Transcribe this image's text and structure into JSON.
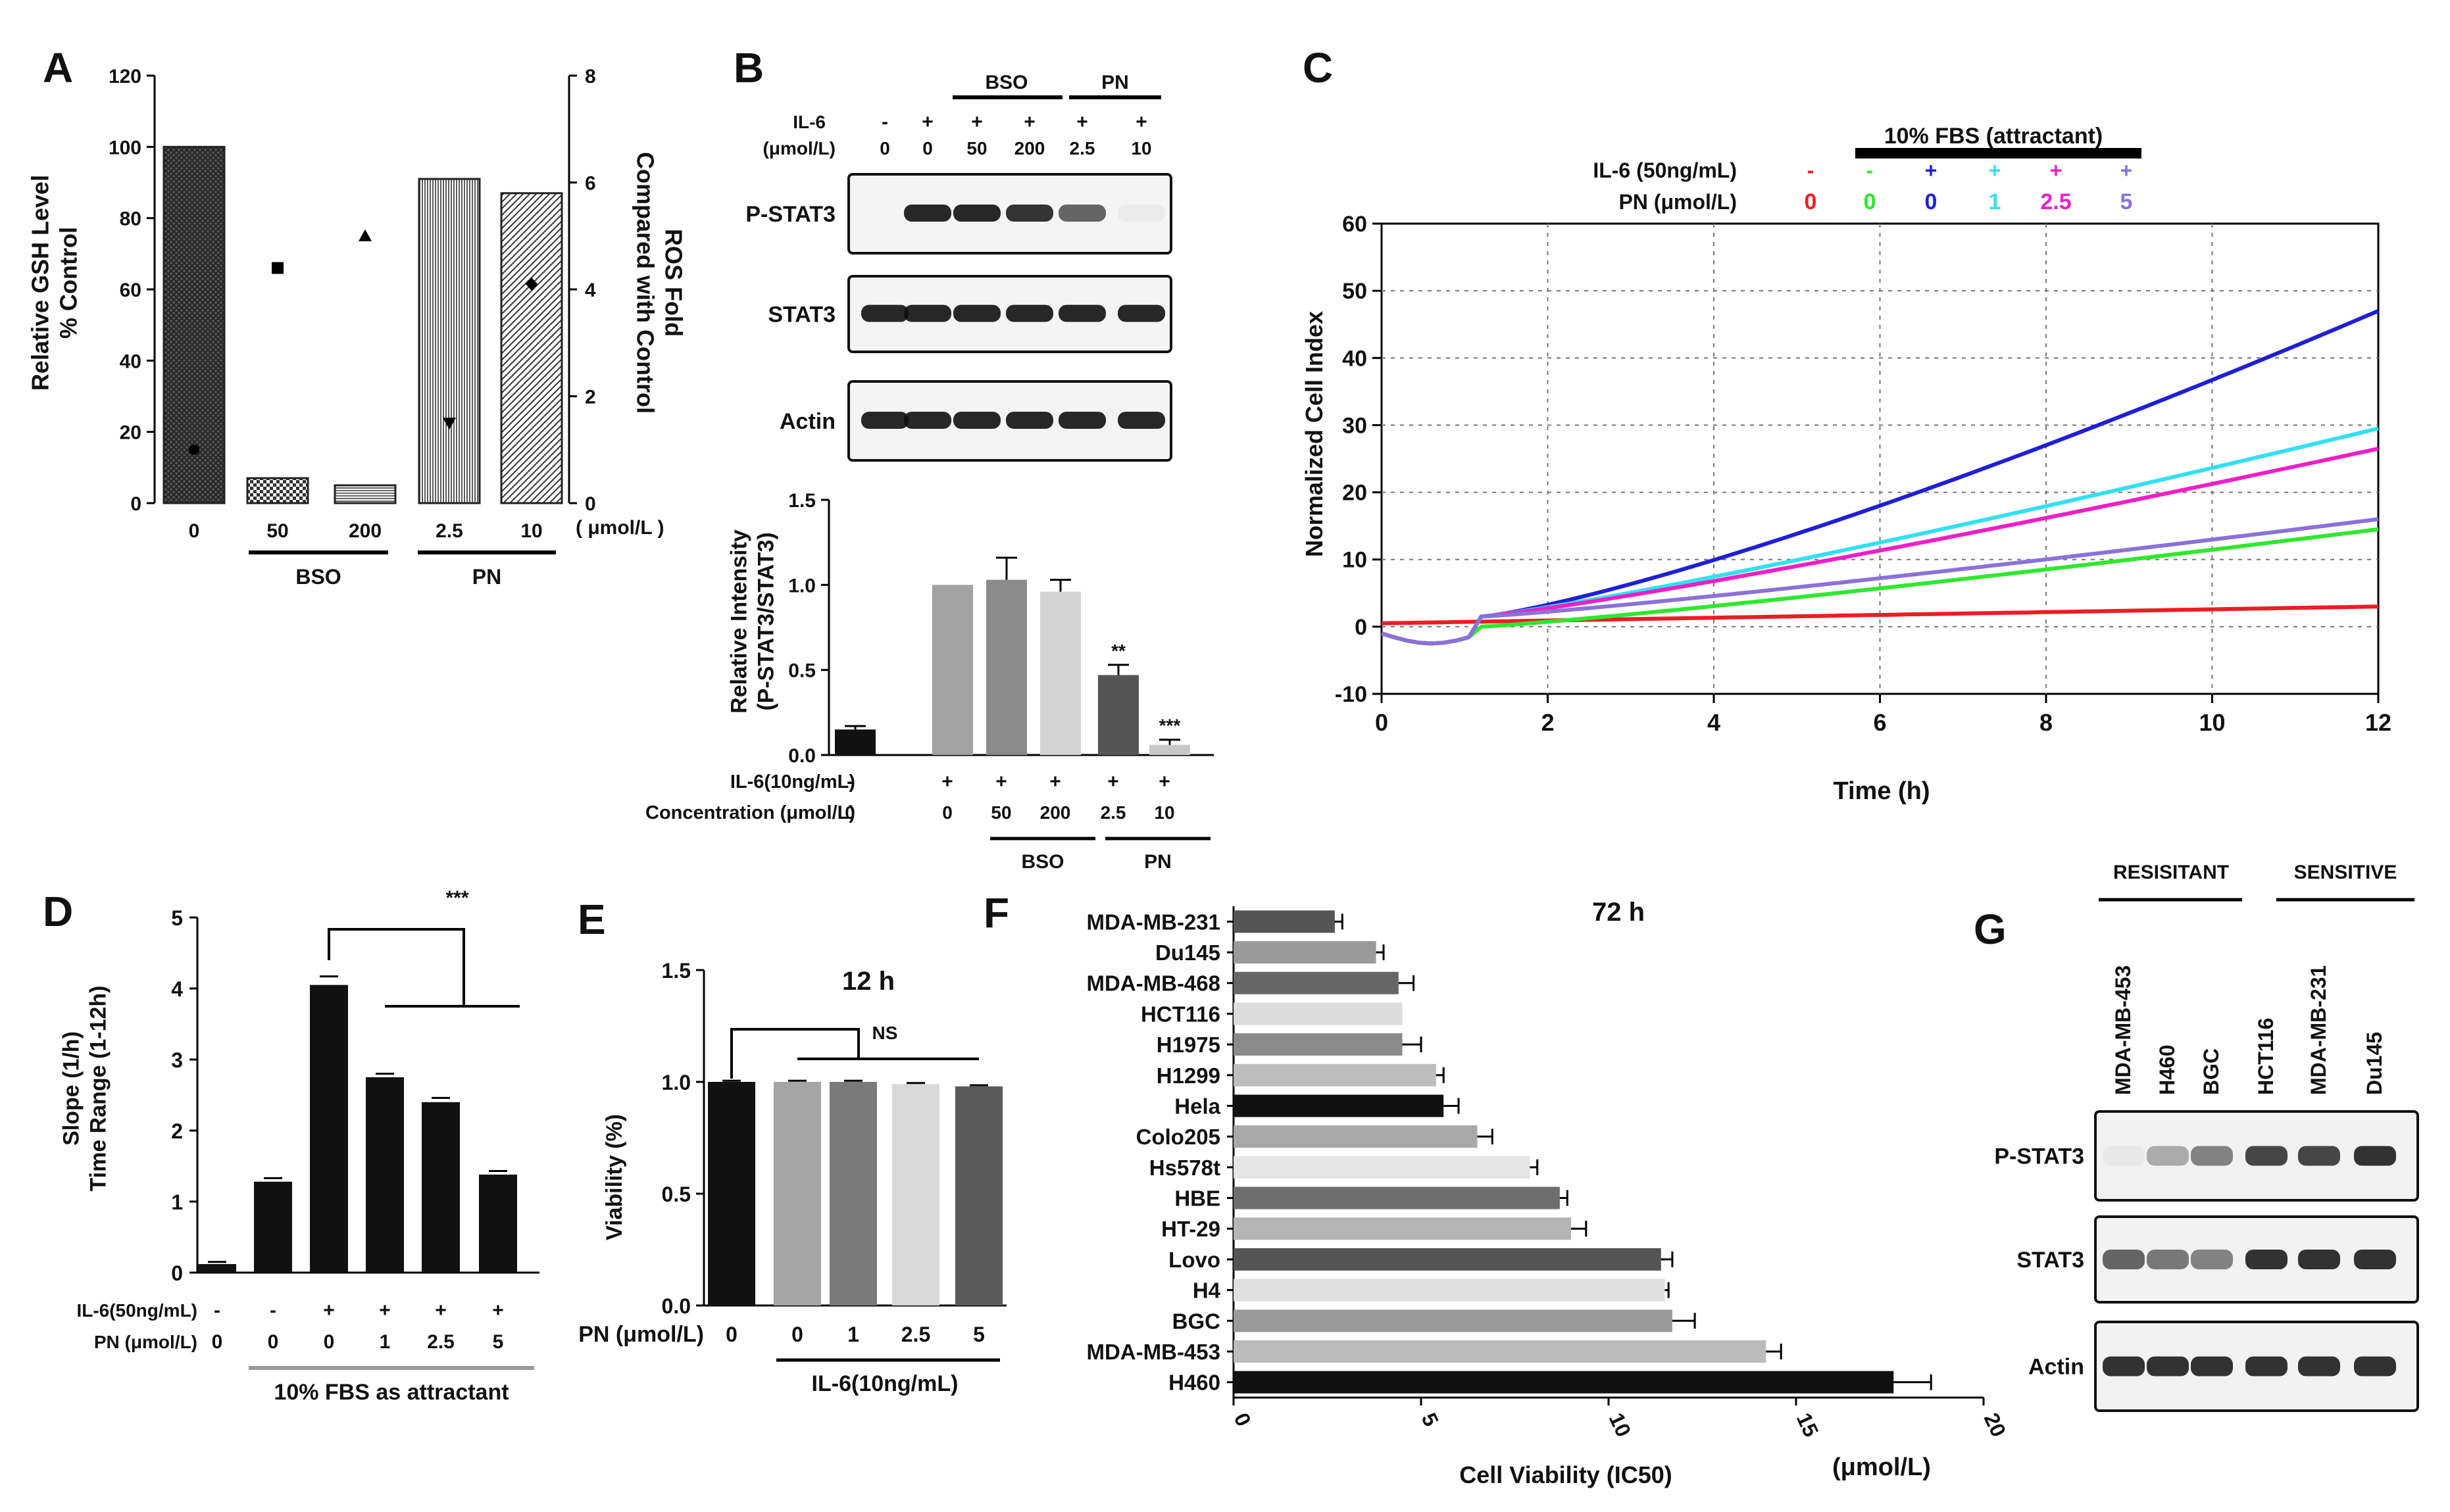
{
  "chart_data": [
    {
      "panel": "A",
      "type": "bar",
      "categories": [
        "0",
        "50",
        "200",
        "2.5",
        "10"
      ],
      "values": [
        100,
        7,
        5,
        91,
        87
      ],
      "ros_markers": [
        1,
        4.4,
        5,
        1.5,
        4.1
      ],
      "ylabel": "Relative GSH Level\n% Control",
      "ylabel2": "ROS Fold\nCompared with Control",
      "ylim": [
        0,
        120
      ],
      "yticks": [
        0,
        20,
        40,
        60,
        80,
        100,
        120
      ],
      "y2lim": [
        0,
        8
      ],
      "y2ticks": [
        0,
        2,
        4,
        6,
        8
      ],
      "unit": "( μmol/L )",
      "groups": [
        "BSO",
        "PN"
      ]
    },
    {
      "panel": "B",
      "type": "bar",
      "blot_top": {
        "group_labels": [
          "BSO",
          "PN"
        ],
        "row_label": "IL-6",
        "unit_label": "(μmol/L)",
        "signs": [
          "-",
          "+",
          "+",
          "+",
          "+",
          "+"
        ],
        "conc": [
          "0",
          "0",
          "50",
          "200",
          "2.5",
          "10"
        ],
        "bands": [
          "P-STAT3",
          "STAT3",
          "Actin"
        ]
      },
      "categories": [
        "0",
        "0",
        "50",
        "200",
        "2.5",
        "10"
      ],
      "values": [
        0.15,
        1.0,
        1.03,
        0.96,
        0.47,
        0.06
      ],
      "errors": [
        0.02,
        0,
        0.13,
        0.07,
        0.06,
        0.03
      ],
      "sig": [
        "",
        "",
        "",
        "",
        "**",
        "***"
      ],
      "ylabel": "Relative Intensity\n(P-STAT3/STAT3)",
      "ylim": [
        0,
        1.5
      ],
      "yticks": [
        "0.0",
        "0.5",
        "1.0",
        "1.5"
      ],
      "row1_label": "IL-6(10ng/mL)",
      "row1": [
        "-",
        "+",
        "+",
        "+",
        "+",
        "+"
      ],
      "row2_label": "Concentration (μmol/L)",
      "row2": [
        "0",
        "0",
        "50",
        "200",
        "2.5",
        "10"
      ],
      "groups": [
        "BSO",
        "PN"
      ]
    },
    {
      "panel": "C",
      "type": "line",
      "header": "10% FBS (attractant)",
      "row1_label": "IL-6 (50ng/mL)",
      "row2_label": "PN (μmol/L)",
      "signs": [
        "-",
        "-",
        "+",
        "+",
        "+",
        "+"
      ],
      "conc": [
        "0",
        "0",
        "0",
        "1",
        "2.5",
        "5"
      ],
      "colors": [
        "#ee1c25",
        "#2ee82e",
        "#1f1fd6",
        "#33e0f0",
        "#ee1fc8",
        "#8a72d8"
      ],
      "series": [
        {
          "name": "IL-6 -, PN 0, no FBS",
          "end": 3
        },
        {
          "name": "IL-6 -, PN 0",
          "end": 14.5
        },
        {
          "name": "IL-6 +, PN 0",
          "end": 47
        },
        {
          "name": "IL-6 +, PN 1",
          "end": 29.5
        },
        {
          "name": "IL-6 +, PN 2.5",
          "end": 26.5
        },
        {
          "name": "IL-6 +, PN 5",
          "end": 16
        }
      ],
      "xlabel": "Time (h)",
      "ylabel": "Normalized Cell Index",
      "xlim": [
        0,
        12
      ],
      "xticks": [
        "0",
        "2",
        "4",
        "6",
        "8",
        "10",
        "12"
      ],
      "ylim": [
        -10,
        60
      ],
      "yticks": [
        "-10",
        "0",
        "10",
        "20",
        "30",
        "40",
        "50",
        "60"
      ]
    },
    {
      "panel": "D",
      "type": "bar",
      "categories": [
        "0",
        "0",
        "0",
        "1",
        "2.5",
        "5"
      ],
      "values": [
        0.12,
        1.28,
        4.05,
        2.75,
        2.4,
        1.38
      ],
      "errors": [
        0.03,
        0.05,
        0.12,
        0.05,
        0.06,
        0.05
      ],
      "sig": "***",
      "ylabel": "Slope (1/h)\nTime Range (1-12h)",
      "ylim": [
        0,
        5
      ],
      "yticks": [
        "0",
        "1",
        "2",
        "3",
        "4",
        "5"
      ],
      "row1_label": "IL-6(50ng/mL)",
      "row1": [
        "-",
        "-",
        "+",
        "+",
        "+",
        "+"
      ],
      "row2_label": "PN (μmol/L)",
      "row2": [
        "0",
        "0",
        "0",
        "1",
        "2.5",
        "5"
      ],
      "footer": "10% FBS as attractant"
    },
    {
      "panel": "E",
      "type": "bar",
      "title": "12 h",
      "categories": [
        "0",
        "0",
        "1",
        "2.5",
        "5"
      ],
      "values": [
        1.0,
        1.0,
        1.0,
        0.99,
        0.98
      ],
      "errors": [
        0.005,
        0.005,
        0.005,
        0.005,
        0.005
      ],
      "sig": "NS",
      "ylabel": "Viability (%)",
      "ylim": [
        0,
        1.5
      ],
      "yticks": [
        "0.0",
        "0.5",
        "1.0",
        "1.5"
      ],
      "row_label": "PN (μmol/L)",
      "footer": "IL-6(10ng/mL)"
    },
    {
      "panel": "F",
      "type": "bar",
      "orientation": "horizontal",
      "title": "72 h",
      "categories": [
        "MDA-MB-231",
        "Du145",
        "MDA-MB-468",
        "HCT116",
        "H1975",
        "H1299",
        "Hela",
        "Colo205",
        "Hs578t",
        "HBE",
        "HT-29",
        "Lovo",
        "H4",
        "BGC",
        "MDA-MB-453",
        "H460"
      ],
      "values": [
        2.7,
        3.8,
        4.4,
        4.5,
        4.5,
        5.4,
        5.6,
        6.5,
        7.9,
        8.7,
        9.0,
        11.4,
        11.5,
        11.7,
        14.2,
        17.6
      ],
      "errors": [
        0.2,
        0.2,
        0.4,
        0,
        0.5,
        0.2,
        0.4,
        0.4,
        0.2,
        0.2,
        0.4,
        0.3,
        0.1,
        0.6,
        0.4,
        1.0
      ],
      "xlabel": "Cell Viability  (IC50)",
      "unit": "(μmol/L)",
      "xlim": [
        0,
        20
      ],
      "xticks": [
        "0",
        "5",
        "10",
        "15",
        "20"
      ]
    },
    {
      "panel": "G",
      "type": "blot",
      "groups": [
        "RESISITANT",
        "SENSITIVE"
      ],
      "lanes": [
        "MDA-MB-453",
        "H460",
        "BGC",
        "HCT116",
        "MDA-MB-231",
        "Du145"
      ],
      "bands": [
        "P-STAT3",
        "STAT3",
        "Actin"
      ]
    }
  ]
}
